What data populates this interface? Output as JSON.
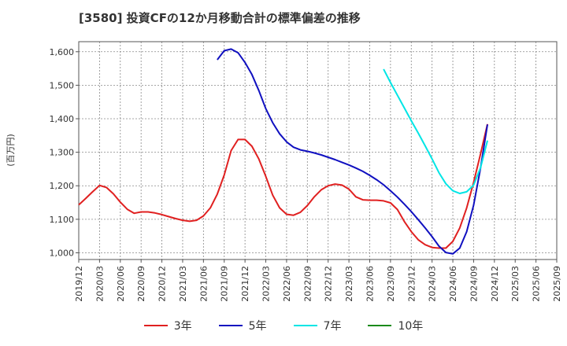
{
  "title": "[3580]  投資CFの12か月移動合計の標準偏差の推移",
  "chart_data": {
    "type": "line",
    "title": "[3580]  投資CFの12か月移動合計の標準偏差の推移",
    "ylabel": "(百万円)",
    "xlabel": "",
    "ylim": [
      980,
      1630
    ],
    "yticks": [
      1000,
      1100,
      1200,
      1300,
      1400,
      1500,
      1600
    ],
    "ytick_labels": [
      "1,000",
      "1,100",
      "1,200",
      "1,300",
      "1,400",
      "1,500",
      "1,600"
    ],
    "xtick_labels": [
      "2019/12",
      "2020/03",
      "2020/06",
      "2020/09",
      "2020/12",
      "2021/03",
      "2021/06",
      "2021/09",
      "2021/12",
      "2022/03",
      "2022/06",
      "2022/09",
      "2022/12",
      "2023/03",
      "2023/06",
      "2023/09",
      "2023/12",
      "2024/03",
      "2024/06",
      "2024/09",
      "2024/12",
      "2025/03",
      "2025/06",
      "2025/09"
    ],
    "x_start": "2019/12",
    "grid": true,
    "legend_position": "bottom",
    "series": [
      {
        "name": "3年",
        "color": "#e02020",
        "start": "2019/12",
        "values": [
          1143,
          1162,
          1182,
          1201,
          1195,
          1176,
          1151,
          1130,
          1118,
          1122,
          1122,
          1119,
          1114,
          1108,
          1102,
          1097,
          1094,
          1097,
          1110,
          1134,
          1175,
          1232,
          1305,
          1338,
          1338,
          1318,
          1280,
          1228,
          1172,
          1134,
          1115,
          1112,
          1121,
          1141,
          1167,
          1188,
          1200,
          1205,
          1202,
          1190,
          1167,
          1158,
          1157,
          1157,
          1155,
          1149,
          1129,
          1093,
          1063,
          1039,
          1024,
          1016,
          1014,
          1014,
          1034,
          1074,
          1134,
          1210,
          1295,
          1384
        ]
      },
      {
        "name": "5年",
        "color": "#1010c0",
        "start": "2021/08",
        "values": [
          1576,
          1603,
          1608,
          1597,
          1568,
          1532,
          1484,
          1430,
          1388,
          1355,
          1331,
          1315,
          1307,
          1303,
          1298,
          1292,
          1285,
          1278,
          1270,
          1262,
          1253,
          1243,
          1231,
          1218,
          1203,
          1185,
          1166,
          1145,
          1123,
          1099,
          1074,
          1048,
          1020,
          1001,
          997,
          1014,
          1063,
          1142,
          1253,
          1383
        ]
      },
      {
        "name": "7年",
        "color": "#00e5e5",
        "start": "2023/08",
        "values": [
          1548,
          1508,
          1470,
          1432,
          1394,
          1357,
          1319,
          1280,
          1239,
          1206,
          1185,
          1177,
          1182,
          1202,
          1254,
          1335
        ]
      },
      {
        "name": "10年",
        "color": "#1a8a1a",
        "start": "2019/12",
        "values": []
      }
    ]
  }
}
